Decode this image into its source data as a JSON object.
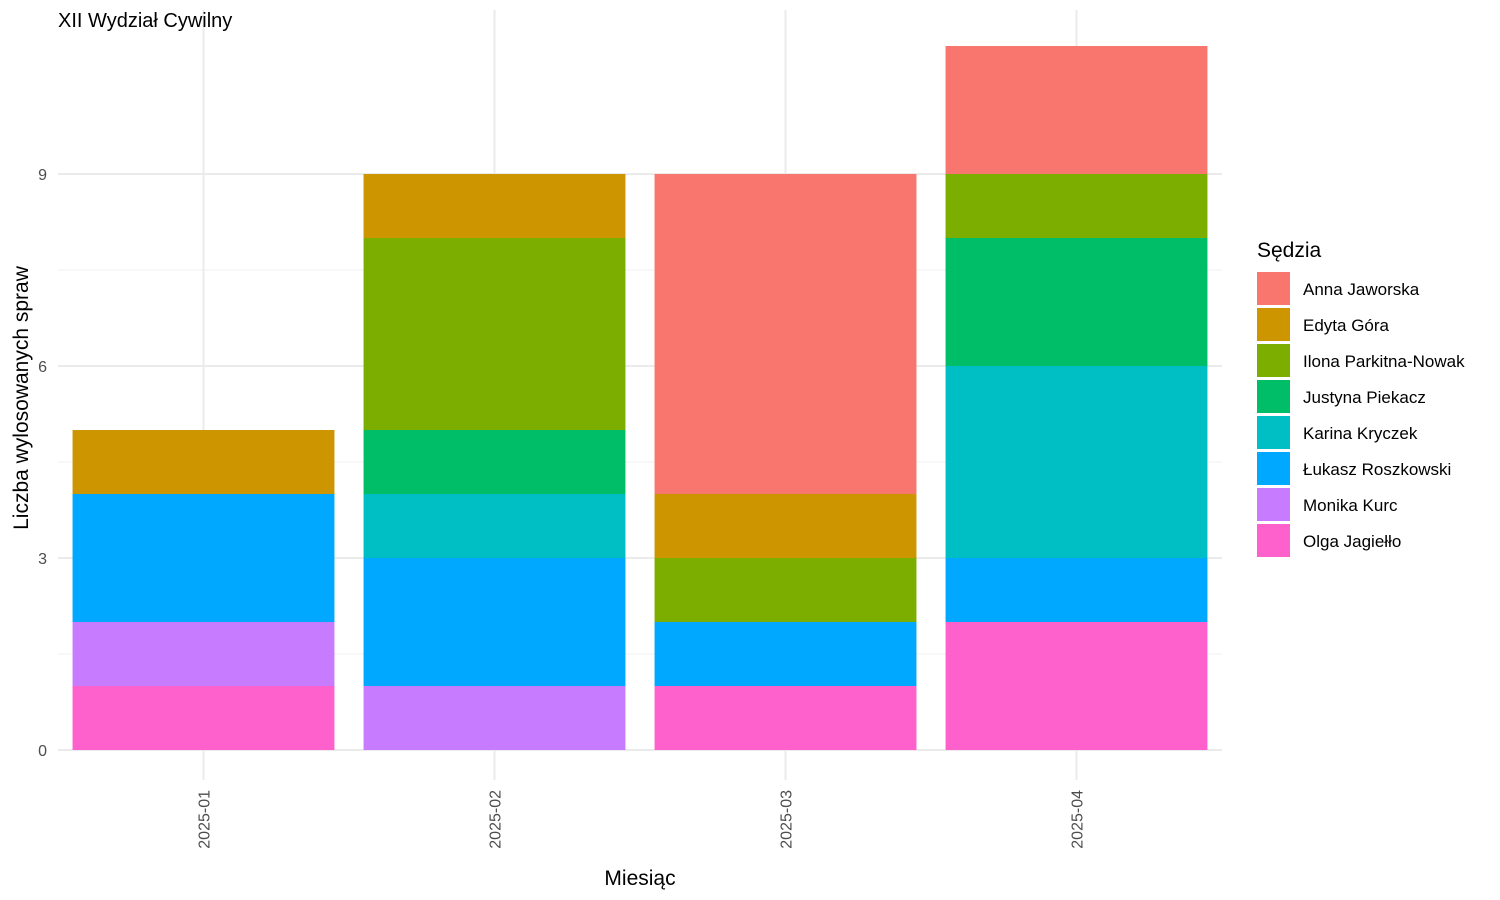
{
  "chart_data": {
    "type": "bar",
    "stacked": true,
    "title": "XII Wydział Cywilny",
    "xlabel": "Miesiąc",
    "ylabel": "Liczba wylosowanych spraw",
    "categories": [
      "2025-01",
      "2025-02",
      "2025-03",
      "2025-04"
    ],
    "ylim": [
      0,
      11
    ],
    "yticks": [
      0,
      3,
      6,
      9
    ],
    "grid": true,
    "legend": {
      "title": "Sędzia",
      "position": "right"
    },
    "series": [
      {
        "name": "Anna Jaworska",
        "color": "#F8766D",
        "values": [
          0,
          0,
          5,
          2
        ]
      },
      {
        "name": "Edyta Góra",
        "color": "#CD9600",
        "values": [
          1,
          1,
          1,
          0
        ]
      },
      {
        "name": "Ilona Parkitna-Nowak",
        "color": "#7CAE00",
        "values": [
          0,
          3,
          1,
          1
        ]
      },
      {
        "name": "Justyna Piekacz",
        "color": "#00BE67",
        "values": [
          0,
          1,
          0,
          2
        ]
      },
      {
        "name": "Karina Kryczek",
        "color": "#00BFC4",
        "values": [
          0,
          1,
          0,
          3
        ]
      },
      {
        "name": "Łukasz Roszkowski",
        "color": "#00A9FF",
        "values": [
          2,
          2,
          1,
          1
        ]
      },
      {
        "name": "Monika Kurc",
        "color": "#C77CFF",
        "values": [
          1,
          1,
          0,
          0
        ]
      },
      {
        "name": "Olga Jagiełło",
        "color": "#FF61CC",
        "values": [
          1,
          0,
          1,
          2
        ]
      }
    ]
  }
}
